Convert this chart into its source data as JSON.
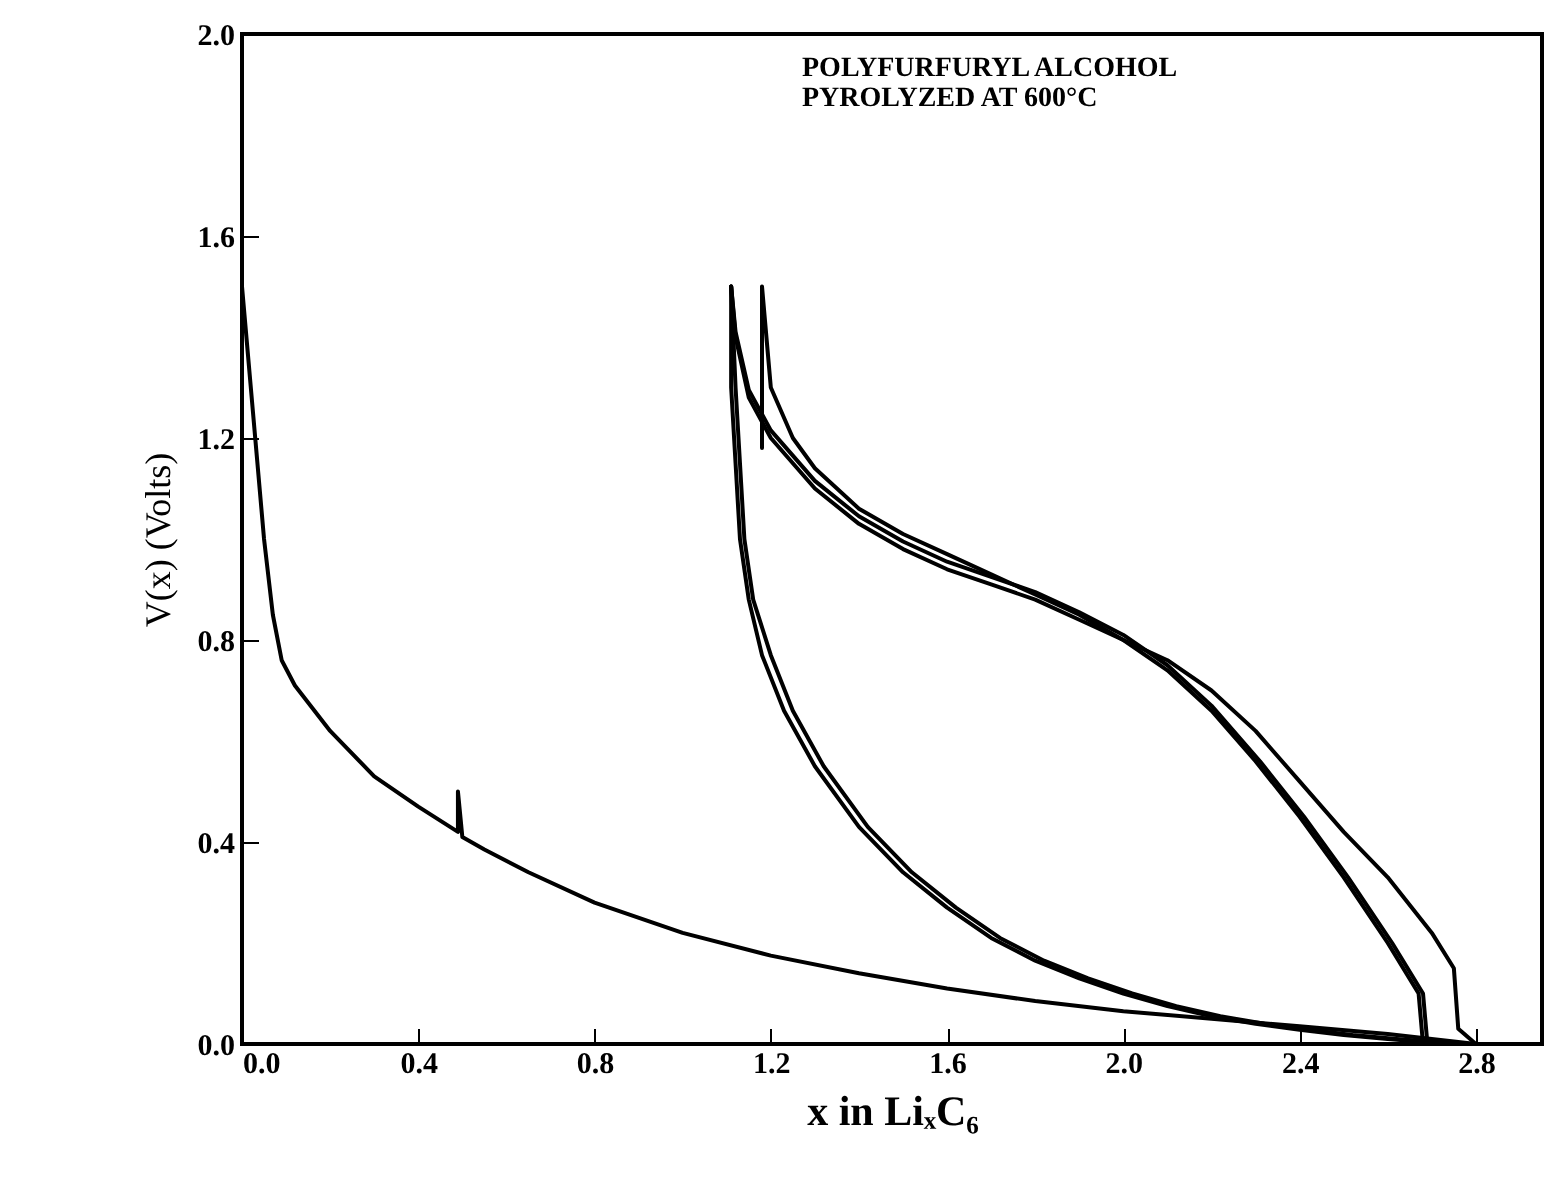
{
  "chart_data": {
    "type": "line",
    "xlabel": "x in LiₓC₆",
    "ylabel": "V(x)  (Volts)",
    "annotations": [
      "POLYFURFURYL ALCOHOL",
      "PYROLYZED AT 600°C"
    ],
    "xlim": [
      0,
      2.95
    ],
    "ylim": [
      0,
      2.0
    ],
    "xticks": [
      {
        "value": 0,
        "label": "0.0"
      },
      0.4,
      0.8,
      1.2,
      1.6,
      {
        "value": 2,
        "label": "2.0"
      },
      2.4,
      2.8
    ],
    "yticks": [
      {
        "value": 0,
        "label": "0.0"
      },
      0.4,
      0.8,
      1.2,
      1.6,
      {
        "value": 2,
        "label": "2.0"
      }
    ],
    "grid": false,
    "marker": "none",
    "line_style": "solid",
    "series": [
      {
        "color": "#000000",
        "x": [
          0,
          0.01,
          0.03,
          0.05,
          0.07,
          0.09,
          0.12,
          0.2,
          0.3,
          0.4,
          0.49,
          0.49,
          0.5,
          0.55,
          0.65,
          0.8,
          1.0,
          1.2,
          1.4,
          1.6,
          1.8,
          2.0,
          2.2,
          2.4,
          2.6,
          2.75,
          2.8
        ],
        "values": [
          1.5,
          1.4,
          1.2,
          1.0,
          0.85,
          0.76,
          0.71,
          0.62,
          0.53,
          0.47,
          0.42,
          0.5,
          0.41,
          0.385,
          0.34,
          0.28,
          0.22,
          0.175,
          0.14,
          0.11,
          0.085,
          0.065,
          0.05,
          0.035,
          0.02,
          0.005,
          0.0
        ]
      },
      {
        "color": "#000000",
        "x": [
          1.11,
          1.11,
          1.12,
          1.13,
          1.15,
          1.18,
          1.23,
          1.3,
          1.4,
          1.5,
          1.6,
          1.7,
          1.8,
          1.9,
          2.0,
          2.1,
          2.2,
          2.3,
          2.4,
          2.5,
          2.6,
          2.7
        ],
        "values": [
          1.5,
          1.3,
          1.15,
          1.0,
          0.88,
          0.77,
          0.66,
          0.55,
          0.43,
          0.34,
          0.27,
          0.21,
          0.165,
          0.13,
          0.1,
          0.075,
          0.055,
          0.04,
          0.028,
          0.018,
          0.01,
          0.003
        ]
      },
      {
        "color": "#000000",
        "x": [
          1.11,
          1.12,
          1.13,
          1.14,
          1.16,
          1.2,
          1.25,
          1.32,
          1.42,
          1.52,
          1.62,
          1.72,
          1.82,
          1.92,
          2.02,
          2.12,
          2.22,
          2.32,
          2.42,
          2.52,
          2.62,
          2.72
        ],
        "values": [
          1.5,
          1.3,
          1.15,
          1.0,
          0.88,
          0.77,
          0.66,
          0.55,
          0.43,
          0.34,
          0.27,
          0.21,
          0.165,
          0.13,
          0.1,
          0.075,
          0.055,
          0.04,
          0.028,
          0.018,
          0.01,
          0.003
        ]
      },
      {
        "color": "#000000",
        "x": [
          2.68,
          2.67,
          2.6,
          2.5,
          2.4,
          2.3,
          2.2,
          2.1,
          2.0,
          1.9,
          1.8,
          1.7,
          1.6,
          1.5,
          1.4,
          1.3,
          1.2,
          1.15,
          1.12,
          1.11
        ],
        "values": [
          0.0,
          0.1,
          0.2,
          0.33,
          0.45,
          0.56,
          0.66,
          0.74,
          0.8,
          0.84,
          0.88,
          0.91,
          0.94,
          0.98,
          1.03,
          1.1,
          1.2,
          1.28,
          1.4,
          1.5
        ]
      },
      {
        "color": "#000000",
        "x": [
          2.69,
          2.68,
          2.61,
          2.51,
          2.41,
          2.31,
          2.2,
          2.1,
          2.0,
          1.9,
          1.8,
          1.7,
          1.6,
          1.5,
          1.4,
          1.3,
          1.2,
          1.15,
          1.12,
          1.11
        ],
        "values": [
          0.0,
          0.1,
          0.2,
          0.33,
          0.45,
          0.56,
          0.67,
          0.75,
          0.81,
          0.855,
          0.895,
          0.925,
          0.955,
          0.995,
          1.045,
          1.115,
          1.215,
          1.295,
          1.41,
          1.5
        ]
      },
      {
        "color": "#000000",
        "x": [
          2.8,
          2.76,
          2.75,
          2.7,
          2.6,
          2.5,
          2.4,
          2.3,
          2.2,
          2.1,
          2.0,
          1.9,
          1.8,
          1.7,
          1.6,
          1.5,
          1.4,
          1.3,
          1.25,
          1.2,
          1.18,
          1.18
        ],
        "values": [
          0.0,
          0.03,
          0.15,
          0.22,
          0.33,
          0.42,
          0.52,
          0.62,
          0.7,
          0.76,
          0.8,
          0.85,
          0.89,
          0.93,
          0.97,
          1.01,
          1.06,
          1.14,
          1.2,
          1.3,
          1.5,
          1.18
        ]
      }
    ]
  }
}
